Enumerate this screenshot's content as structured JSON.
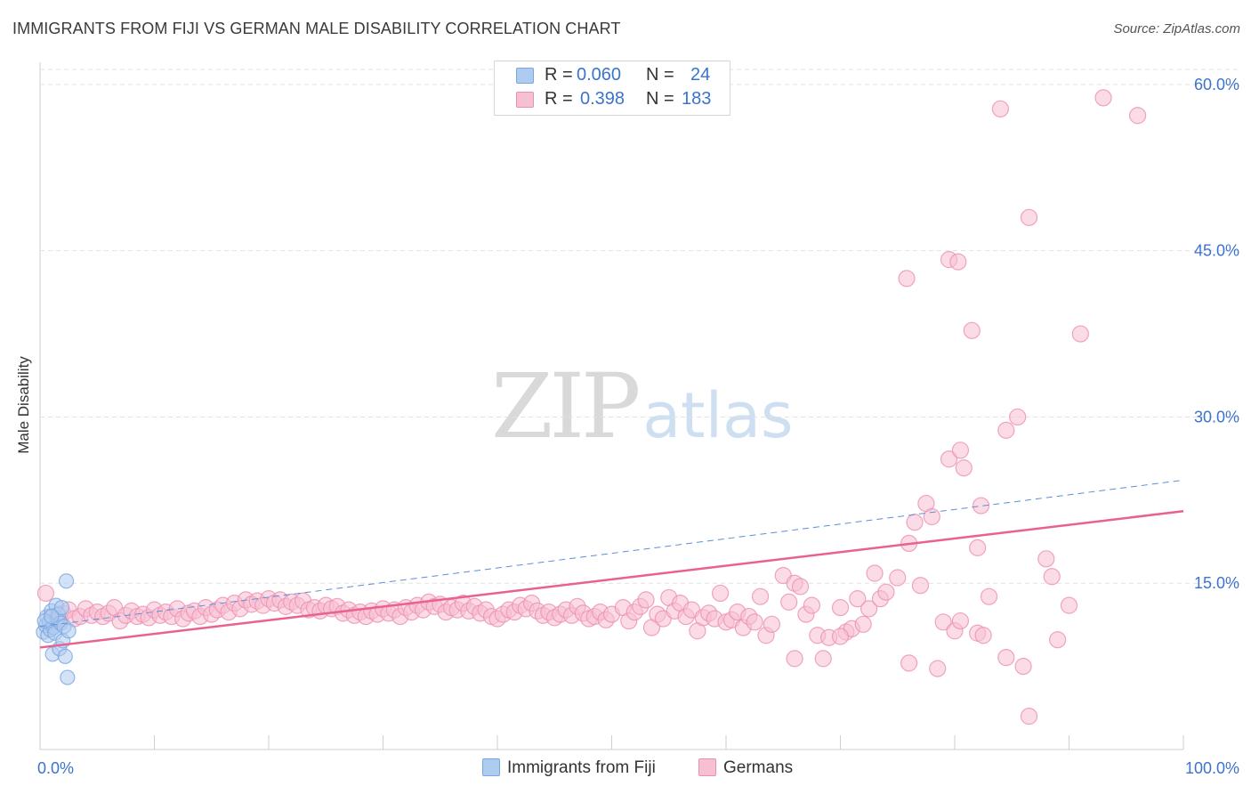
{
  "title": "IMMIGRANTS FROM FIJI VS GERMAN MALE DISABILITY CORRELATION CHART",
  "source": "Source: ZipAtlas.com",
  "watermark": {
    "zip": "ZIP",
    "atlas": "atlas"
  },
  "legend": {
    "rows": [
      {
        "r_label": "R = ",
        "r_value": "0.060",
        "n_label": "N = ",
        "n_value": "24",
        "color": "#aecbf0",
        "border": "#7aa6e0"
      },
      {
        "r_label": "R = ",
        "r_value": "0.398",
        "n_label": "N = ",
        "n_value": "183",
        "color": "#f7c0d2",
        "border": "#ec8fb0"
      }
    ]
  },
  "bottom_legend": [
    {
      "label": "Immigrants from Fiji",
      "color": "#aecbf0",
      "border": "#7aa6e0"
    },
    {
      "label": "Germans",
      "color": "#f7c0d2",
      "border": "#ec8fb0"
    }
  ],
  "chart_data": {
    "type": "scatter",
    "ylabel": "Male Disability",
    "x_tick_labels": [
      "0.0%",
      "100.0%"
    ],
    "y_tick_labels": [
      "15.0%",
      "30.0%",
      "45.0%",
      "60.0%"
    ],
    "y_ticks": [
      15,
      30,
      45,
      60
    ],
    "xlim": [
      0,
      100
    ],
    "ylim": [
      0,
      62
    ],
    "grid": true,
    "colors": {
      "fiji": "#7aa6e0",
      "fiji_fill": "#aecbf0",
      "germans": "#ec8fb0",
      "germans_fill": "#f7c0d2",
      "tick_label": "#3b73cf"
    },
    "series": [
      {
        "name": "Immigrants from Fiji",
        "key": "fiji",
        "trend": {
          "x": [
            0,
            100
          ],
          "y": [
            11.1,
            24.3
          ],
          "style": "dashed"
        },
        "points": [
          [
            0.3,
            10.6
          ],
          [
            0.5,
            11.2
          ],
          [
            0.6,
            12.0
          ],
          [
            0.7,
            10.3
          ],
          [
            0.8,
            11.5
          ],
          [
            0.9,
            10.8
          ],
          [
            1.0,
            12.5
          ],
          [
            1.1,
            8.6
          ],
          [
            1.2,
            11.0
          ],
          [
            1.3,
            10.5
          ],
          [
            1.4,
            13.0
          ],
          [
            1.5,
            11.8
          ],
          [
            1.6,
            12.2
          ],
          [
            1.7,
            9.1
          ],
          [
            1.8,
            11.4
          ],
          [
            1.9,
            12.8
          ],
          [
            2.0,
            9.8
          ],
          [
            2.1,
            11.1
          ],
          [
            2.2,
            8.4
          ],
          [
            2.3,
            15.2
          ],
          [
            2.4,
            6.5
          ],
          [
            2.5,
            10.7
          ],
          [
            0.4,
            11.6
          ],
          [
            1.0,
            12.0
          ]
        ]
      },
      {
        "name": "Germans",
        "key": "germans",
        "trend": {
          "x": [
            0,
            100
          ],
          "y": [
            9.2,
            21.5
          ],
          "style": "solid"
        },
        "points": [
          [
            0.5,
            14.1
          ],
          [
            1.0,
            12.0
          ],
          [
            1.5,
            11.5
          ],
          [
            2.0,
            12.3
          ],
          [
            2.5,
            12.6
          ],
          [
            3.0,
            11.8
          ],
          [
            3.5,
            12.0
          ],
          [
            4.0,
            12.7
          ],
          [
            4.5,
            12.1
          ],
          [
            5.0,
            12.4
          ],
          [
            5.5,
            12.0
          ],
          [
            6.0,
            12.3
          ],
          [
            6.5,
            12.8
          ],
          [
            7.0,
            11.6
          ],
          [
            7.5,
            12.1
          ],
          [
            8.0,
            12.5
          ],
          [
            8.5,
            12.0
          ],
          [
            9.0,
            12.2
          ],
          [
            9.5,
            11.9
          ],
          [
            10.0,
            12.6
          ],
          [
            10.5,
            12.1
          ],
          [
            11.0,
            12.4
          ],
          [
            11.5,
            12.0
          ],
          [
            12.0,
            12.7
          ],
          [
            12.5,
            11.8
          ],
          [
            13.0,
            12.3
          ],
          [
            13.5,
            12.5
          ],
          [
            14.0,
            12.0
          ],
          [
            14.5,
            12.8
          ],
          [
            15.0,
            12.2
          ],
          [
            15.5,
            12.6
          ],
          [
            16.0,
            13.0
          ],
          [
            16.5,
            12.4
          ],
          [
            17.0,
            13.2
          ],
          [
            17.5,
            12.7
          ],
          [
            18.0,
            13.5
          ],
          [
            18.5,
            13.1
          ],
          [
            19.0,
            13.4
          ],
          [
            19.5,
            13.0
          ],
          [
            20.0,
            13.6
          ],
          [
            20.5,
            13.2
          ],
          [
            21.0,
            13.5
          ],
          [
            21.5,
            12.9
          ],
          [
            22.0,
            13.3
          ],
          [
            22.5,
            13.0
          ],
          [
            23.0,
            13.4
          ],
          [
            23.5,
            12.6
          ],
          [
            24.0,
            12.8
          ],
          [
            24.5,
            12.5
          ],
          [
            25.0,
            13.0
          ],
          [
            25.5,
            12.7
          ],
          [
            26.0,
            12.9
          ],
          [
            26.5,
            12.3
          ],
          [
            27.0,
            12.6
          ],
          [
            27.5,
            12.1
          ],
          [
            28.0,
            12.4
          ],
          [
            28.5,
            12.0
          ],
          [
            29.0,
            12.5
          ],
          [
            29.5,
            12.2
          ],
          [
            30.0,
            12.7
          ],
          [
            30.5,
            12.3
          ],
          [
            31.0,
            12.6
          ],
          [
            31.5,
            12.0
          ],
          [
            32.0,
            12.8
          ],
          [
            32.5,
            12.4
          ],
          [
            33.0,
            13.0
          ],
          [
            33.5,
            12.6
          ],
          [
            34.0,
            13.3
          ],
          [
            34.5,
            12.9
          ],
          [
            35.0,
            13.1
          ],
          [
            35.5,
            12.4
          ],
          [
            36.0,
            12.8
          ],
          [
            36.5,
            12.6
          ],
          [
            37.0,
            13.2
          ],
          [
            37.5,
            12.5
          ],
          [
            38.0,
            12.9
          ],
          [
            38.5,
            12.3
          ],
          [
            39.0,
            12.6
          ],
          [
            39.5,
            12.0
          ],
          [
            40.0,
            11.8
          ],
          [
            40.5,
            12.2
          ],
          [
            41.0,
            12.6
          ],
          [
            41.5,
            12.4
          ],
          [
            42.0,
            13.0
          ],
          [
            42.5,
            12.7
          ],
          [
            43.0,
            13.2
          ],
          [
            43.5,
            12.5
          ],
          [
            44.0,
            12.1
          ],
          [
            44.5,
            12.4
          ],
          [
            45.0,
            11.9
          ],
          [
            45.5,
            12.2
          ],
          [
            46.0,
            12.6
          ],
          [
            46.5,
            12.1
          ],
          [
            47.0,
            12.9
          ],
          [
            47.5,
            12.3
          ],
          [
            48.0,
            11.8
          ],
          [
            48.5,
            12.0
          ],
          [
            49.0,
            12.4
          ],
          [
            49.5,
            11.7
          ],
          [
            50.0,
            12.2
          ],
          [
            51.0,
            12.8
          ],
          [
            51.5,
            11.6
          ],
          [
            52.0,
            12.4
          ],
          [
            52.5,
            12.9
          ],
          [
            53.0,
            13.5
          ],
          [
            53.5,
            11.0
          ],
          [
            54.0,
            12.2
          ],
          [
            54.5,
            11.8
          ],
          [
            55.0,
            13.7
          ],
          [
            55.5,
            12.5
          ],
          [
            56.0,
            13.2
          ],
          [
            56.5,
            12.0
          ],
          [
            57.0,
            12.6
          ],
          [
            57.5,
            10.7
          ],
          [
            58.0,
            11.9
          ],
          [
            58.5,
            12.3
          ],
          [
            59.0,
            11.8
          ],
          [
            59.5,
            14.1
          ],
          [
            60.0,
            11.5
          ],
          [
            60.5,
            11.7
          ],
          [
            61.0,
            12.4
          ],
          [
            61.5,
            11.0
          ],
          [
            62.0,
            12.0
          ],
          [
            62.5,
            11.5
          ],
          [
            63.0,
            13.8
          ],
          [
            63.5,
            10.3
          ],
          [
            64.0,
            11.3
          ],
          [
            65.0,
            15.7
          ],
          [
            65.5,
            13.3
          ],
          [
            66.0,
            15.0
          ],
          [
            66.5,
            14.7
          ],
          [
            67.0,
            12.2
          ],
          [
            67.5,
            13.0
          ],
          [
            68.0,
            10.3
          ],
          [
            68.5,
            8.2
          ],
          [
            69.0,
            10.1
          ],
          [
            70.0,
            12.8
          ],
          [
            70.5,
            10.6
          ],
          [
            71.0,
            10.9
          ],
          [
            71.5,
            13.6
          ],
          [
            72.0,
            11.3
          ],
          [
            72.5,
            12.7
          ],
          [
            73.0,
            15.9
          ],
          [
            73.5,
            13.6
          ],
          [
            74.0,
            14.2
          ],
          [
            75.0,
            15.5
          ],
          [
            76.0,
            7.8
          ],
          [
            77.0,
            14.8
          ],
          [
            78.5,
            7.3
          ],
          [
            79.0,
            11.5
          ],
          [
            80.0,
            10.7
          ],
          [
            80.5,
            11.6
          ],
          [
            82.0,
            10.5
          ],
          [
            82.5,
            10.3
          ],
          [
            84.5,
            8.3
          ],
          [
            86.0,
            7.5
          ],
          [
            86.5,
            3.0
          ],
          [
            88.0,
            17.2
          ],
          [
            88.5,
            15.6
          ],
          [
            89.0,
            9.9
          ],
          [
            90.0,
            13.0
          ],
          [
            76.5,
            20.5
          ],
          [
            77.5,
            22.2
          ],
          [
            78.0,
            21.0
          ],
          [
            79.5,
            26.2
          ],
          [
            80.5,
            27.0
          ],
          [
            80.8,
            25.4
          ],
          [
            82.0,
            18.2
          ],
          [
            83.0,
            13.8
          ],
          [
            84.5,
            28.8
          ],
          [
            85.5,
            30.0
          ],
          [
            76.0,
            18.6
          ],
          [
            82.3,
            22.0
          ],
          [
            75.8,
            42.5
          ],
          [
            79.5,
            44.2
          ],
          [
            80.3,
            44.0
          ],
          [
            81.5,
            37.8
          ],
          [
            86.5,
            48.0
          ],
          [
            91.0,
            37.5
          ],
          [
            84.0,
            57.8
          ],
          [
            93.0,
            58.8
          ],
          [
            96.0,
            57.2
          ],
          [
            66.0,
            8.2
          ],
          [
            70.0,
            10.2
          ]
        ]
      }
    ]
  }
}
